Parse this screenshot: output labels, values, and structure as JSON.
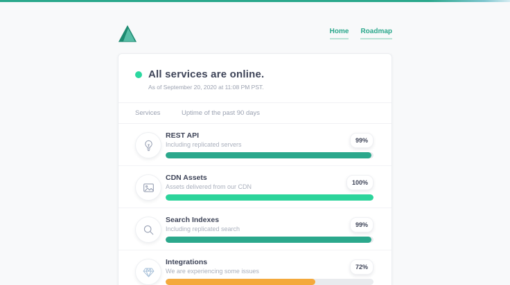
{
  "page": {
    "background": "#f8f9fa",
    "accent": "#2ba88c"
  },
  "topbar": {
    "gradient_from": "#2ba88c",
    "gradient_to": "#d4ecf1"
  },
  "logo": {
    "icon": "triangle-logo",
    "color_dark": "#1d8a70",
    "color_light": "#57bda6"
  },
  "nav": {
    "items": [
      {
        "label": "Home"
      },
      {
        "label": "Roadmap"
      }
    ]
  },
  "status": {
    "headline": "All services are online.",
    "timestamp": "As of September 20, 2020 at 11:08 PM PST.",
    "dot_color": "#2bd8a0"
  },
  "services_header": {
    "col1": "Services",
    "col2": "Uptime of the past 90 days"
  },
  "services": [
    {
      "name": "REST API",
      "description": "Including replicated servers",
      "uptime_label": "99%",
      "uptime_value": 99,
      "bar_color": "#2ba88c",
      "icon": "lightbulb-icon"
    },
    {
      "name": "CDN Assets",
      "description": "Assets delivered from our CDN",
      "uptime_label": "100%",
      "uptime_value": 100,
      "bar_color": "#2cd49b",
      "icon": "image-icon"
    },
    {
      "name": "Search Indexes",
      "description": "Including replicated search",
      "uptime_label": "99%",
      "uptime_value": 99,
      "bar_color": "#2ba88c",
      "icon": "search-icon"
    },
    {
      "name": "Integrations",
      "description": "We are experiencing some issues",
      "uptime_label": "72%",
      "uptime_value": 72,
      "bar_color": "#f4a93c",
      "icon": "diamond-icon"
    }
  ]
}
